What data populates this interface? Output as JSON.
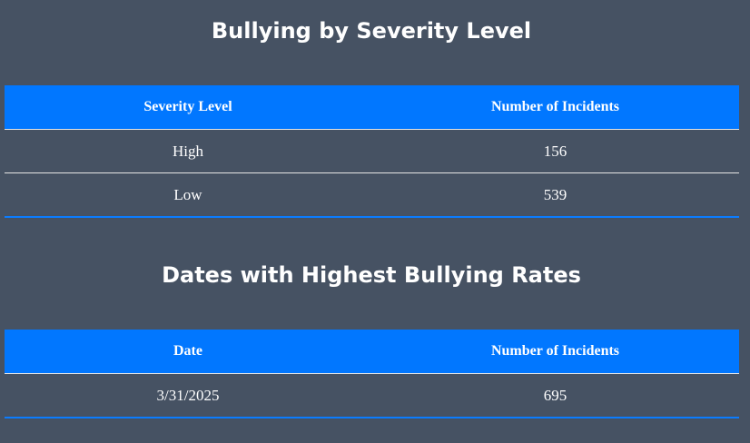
{
  "colors": {
    "page_background": "#465263",
    "header_background": "#0177ff",
    "accent_border": "#0b7cff",
    "row_divider": "#e6e6e6",
    "text": "#ffffff"
  },
  "severity_section": {
    "title": "Bullying by Severity Level",
    "headers": [
      "Severity Level",
      "Number of Incidents"
    ],
    "rows": [
      [
        "High",
        "156"
      ],
      [
        "Low",
        "539"
      ]
    ]
  },
  "dates_section": {
    "title": "Dates with Highest Bullying Rates",
    "headers": [
      "Date",
      "Number of Incidents"
    ],
    "rows": [
      [
        "3/31/2025",
        "695"
      ]
    ]
  }
}
